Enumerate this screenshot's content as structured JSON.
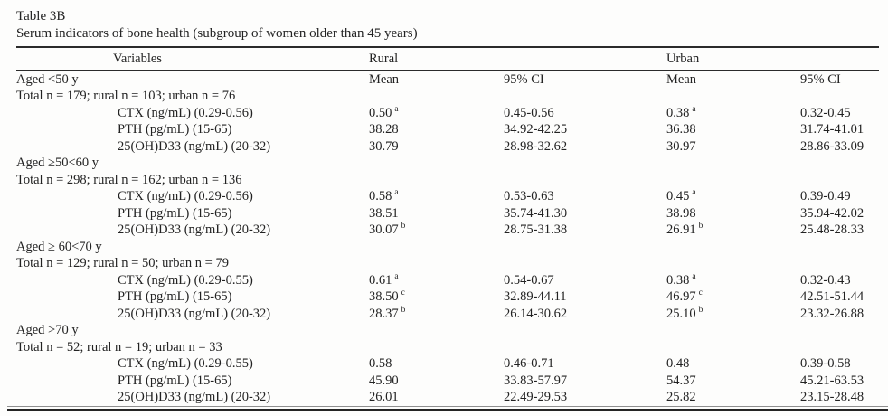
{
  "t": {
    "title": "Table 3B",
    "subtitle": "Serum indicators of bone health (subgroup of women older than 45 years)",
    "headers": {
      "variables": "Variables",
      "rural": "Rural",
      "urban": "Urban",
      "rural_mean": "Mean",
      "rural_ci": "95% CI",
      "urban_mean": "Mean",
      "urban_ci": "95% CI"
    },
    "groups": [
      {
        "age_label": "Aged <50 y",
        "total_label": "Total n = 179; rural n = 103; urban n = 76",
        "rows": [
          {
            "variable": "CTX (ng/mL) (0.29-0.56)",
            "rural_mean": "0.50",
            "rural_sup": "a",
            "rural_ci": "0.45-0.56",
            "urban_mean": "0.38",
            "urban_sup": "a",
            "urban_ci": "0.32-0.45"
          },
          {
            "variable": "PTH (pg/mL) (15-65)",
            "rural_mean": "38.28",
            "rural_sup": "",
            "rural_ci": "34.92-42.25",
            "urban_mean": "36.38",
            "urban_sup": "",
            "urban_ci": "31.74-41.01"
          },
          {
            "variable": "25(OH)D33 (ng/mL) (20-32)",
            "rural_mean": "30.79",
            "rural_sup": "",
            "rural_ci": "28.98-32.62",
            "urban_mean": "30.97",
            "urban_sup": "",
            "urban_ci": "28.86-33.09"
          }
        ]
      },
      {
        "age_label": "Aged ≥50<60 y",
        "total_label": "Total n = 298; rural n = 162; urban n = 136",
        "rows": [
          {
            "variable": "CTX (ng/mL) (0.29-0.56)",
            "rural_mean": "0.58",
            "rural_sup": "a",
            "rural_ci": "0.53-0.63",
            "urban_mean": "0.45",
            "urban_sup": "a",
            "urban_ci": "0.39-0.49"
          },
          {
            "variable": "PTH (pg/mL) (15-65)",
            "rural_mean": "38.51",
            "rural_sup": "",
            "rural_ci": "35.74-41.30",
            "urban_mean": "38.98",
            "urban_sup": "",
            "urban_ci": "35.94-42.02"
          },
          {
            "variable": "25(OH)D33 (ng/mL) (20-32)",
            "rural_mean": "30.07",
            "rural_sup": "b",
            "rural_ci": "28.75-31.38",
            "urban_mean": "26.91",
            "urban_sup": "b",
            "urban_ci": "25.48-28.33"
          }
        ]
      },
      {
        "age_label": "Aged ≥ 60<70 y",
        "total_label": "Total n = 129; rural n = 50; urban n = 79",
        "rows": [
          {
            "variable": "CTX (ng/mL) (0.29-0.55)",
            "rural_mean": "0.61",
            "rural_sup": "a",
            "rural_ci": "0.54-0.67",
            "urban_mean": "0.38",
            "urban_sup": "a",
            "urban_ci": "0.32-0.43"
          },
          {
            "variable": "PTH (pg/mL) (15-65)",
            "rural_mean": "38.50",
            "rural_sup": "c",
            "rural_ci": "32.89-44.11",
            "urban_mean": "46.97",
            "urban_sup": "c",
            "urban_ci": "42.51-51.44"
          },
          {
            "variable": "25(OH)D33 (ng/mL) (20-32)",
            "rural_mean": "28.37",
            "rural_sup": "b",
            "rural_ci": "26.14-30.62",
            "urban_mean": "25.10",
            "urban_sup": "b",
            "urban_ci": "23.32-26.88"
          }
        ]
      },
      {
        "age_label": "Aged >70 y",
        "total_label": "Total n = 52; rural n = 19; urban n = 33",
        "rows": [
          {
            "variable": "CTX (ng/mL) (0.29-0.55)",
            "rural_mean": "0.58",
            "rural_sup": "",
            "rural_ci": "0.46-0.71",
            "urban_mean": "0.48",
            "urban_sup": "",
            "urban_ci": "0.39-0.58"
          },
          {
            "variable": "PTH (pg/mL) (15-65)",
            "rural_mean": "45.90",
            "rural_sup": "",
            "rural_ci": "33.83-57.97",
            "urban_mean": "54.37",
            "urban_sup": "",
            "urban_ci": "45.21-63.53"
          },
          {
            "variable": "25(OH)D33 (ng/mL) (20-32)",
            "rural_mean": "26.01",
            "rural_sup": "",
            "rural_ci": "22.49-29.53",
            "urban_mean": "25.82",
            "urban_sup": "",
            "urban_ci": "23.15-28.48"
          }
        ]
      }
    ]
  }
}
